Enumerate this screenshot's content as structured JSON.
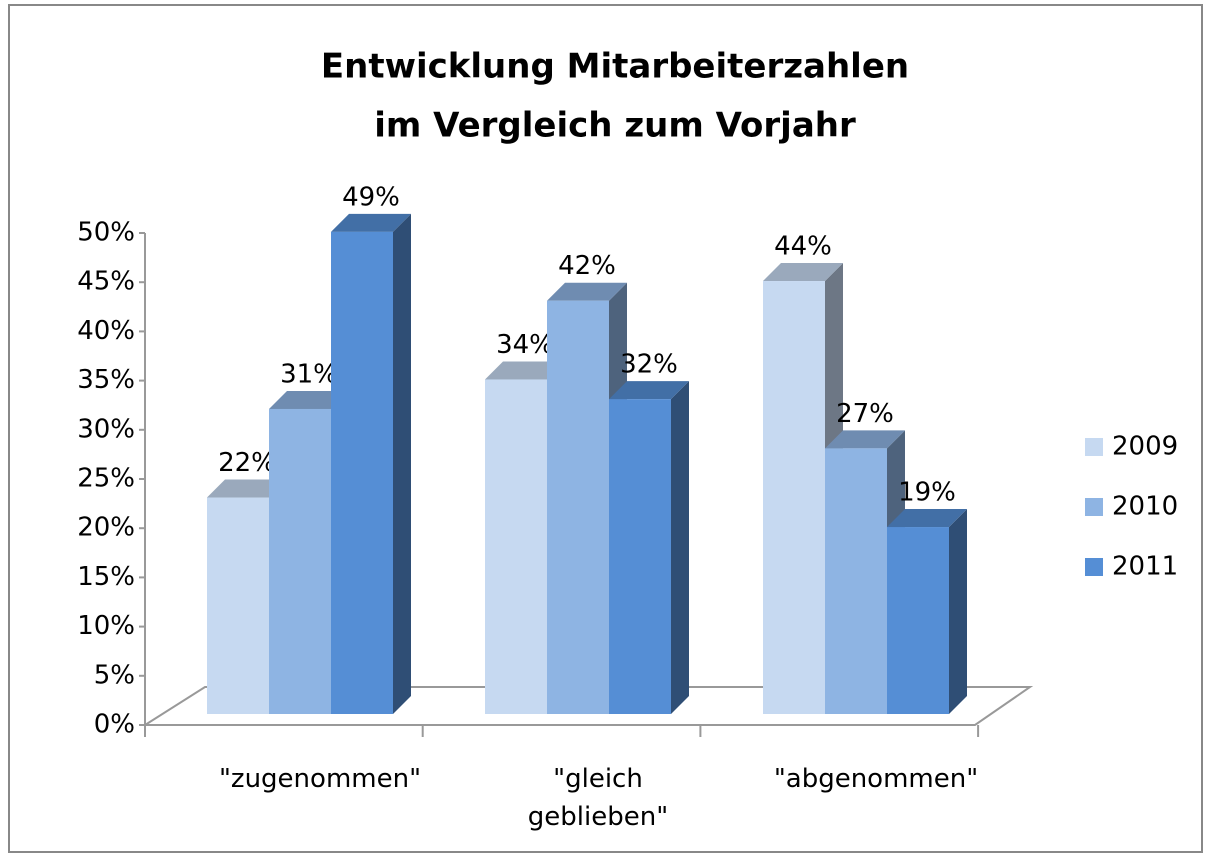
{
  "chart_data": {
    "type": "bar3d",
    "title": [
      "Entwicklung Mitarbeiterzahlen",
      "im Vergleich zum Vorjahr"
    ],
    "categories": [
      "\"zugenommen\"",
      "\"gleich geblieben\"",
      "\"abgenommen\""
    ],
    "series": [
      {
        "name": "2009",
        "color": "#c6d9f1",
        "values": [
          22,
          34,
          44
        ],
        "value_labels": [
          "22%",
          "34%",
          "44%"
        ]
      },
      {
        "name": "2010",
        "color": "#8eb4e3",
        "values": [
          31,
          42,
          27
        ],
        "value_labels": [
          "31%",
          "42%",
          "27%"
        ]
      },
      {
        "name": "2011",
        "color": "#558ed5",
        "values": [
          49,
          32,
          19
        ],
        "value_labels": [
          "49%",
          "32%",
          "19%"
        ]
      }
    ],
    "ylim": [
      0,
      50
    ],
    "yticks": [
      {
        "value": 0,
        "label": "0%"
      },
      {
        "value": 5,
        "label": "5%"
      },
      {
        "value": 10,
        "label": "10%"
      },
      {
        "value": 15,
        "label": "15%"
      },
      {
        "value": 20,
        "label": "20%"
      },
      {
        "value": 25,
        "label": "25%"
      },
      {
        "value": 30,
        "label": "30%"
      },
      {
        "value": 35,
        "label": "35%"
      },
      {
        "value": 40,
        "label": "40%"
      },
      {
        "value": 45,
        "label": "45%"
      },
      {
        "value": 50,
        "label": "50%"
      }
    ],
    "legend": "right"
  }
}
